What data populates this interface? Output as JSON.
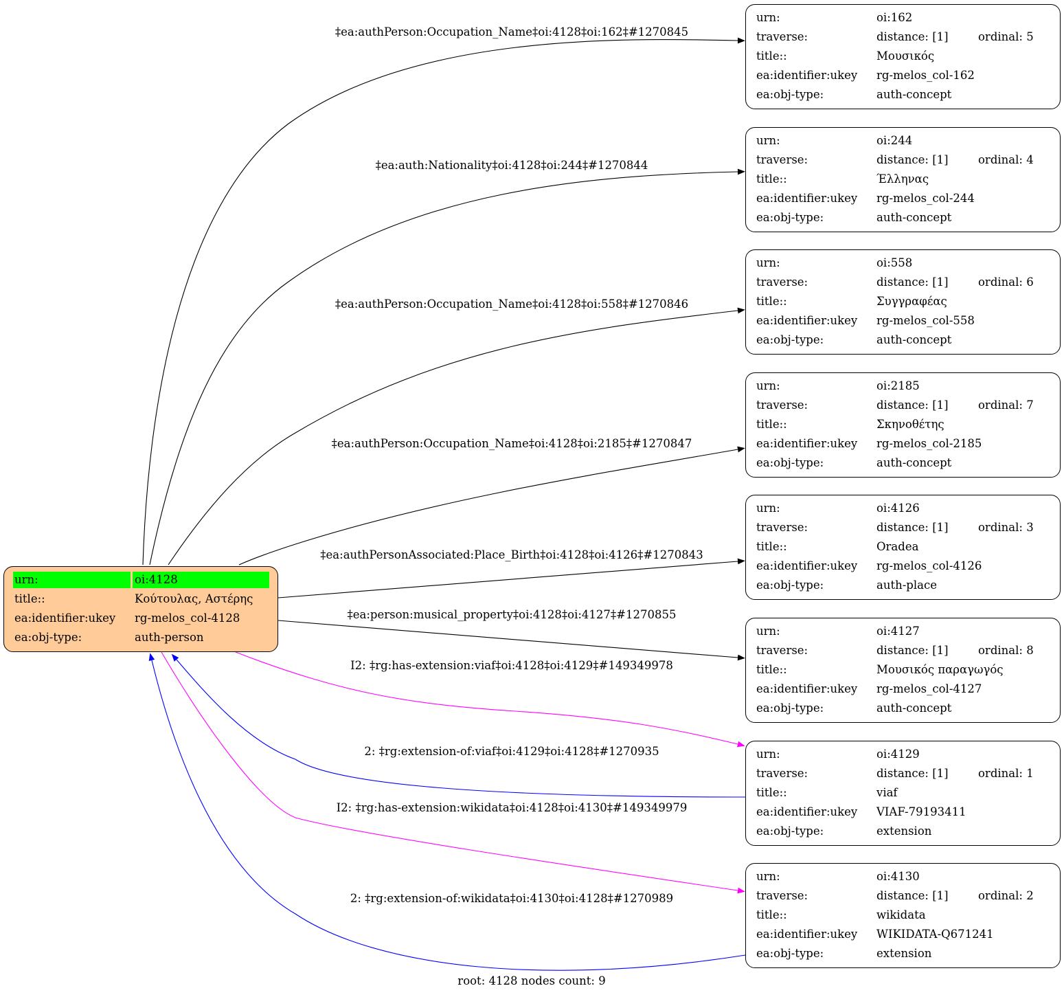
{
  "field_labels": {
    "urn": "urn:",
    "traverse": "traverse:",
    "title": "title::",
    "ukey": "ea:identifier:ukey",
    "objtype": "ea:obj-type:"
  },
  "colors": {
    "root_fill": "#ffcc99",
    "root_highlight": "#00ff00",
    "forward": "#000000",
    "extension": "#ff00ff",
    "extension_of": "#0000ff"
  },
  "root": {
    "urn": "oi:4128",
    "title": "Κούτουλας, Αστέρης",
    "ukey": "rg-melos_col-4128",
    "objtype": "auth-person"
  },
  "nodes": [
    {
      "urn": "oi:162",
      "distance": "distance: [1]",
      "ordinal": "ordinal: 5",
      "title": "Μουσικός",
      "ukey": "rg-melos_col-162",
      "objtype": "auth-concept"
    },
    {
      "urn": "oi:244",
      "distance": "distance: [1]",
      "ordinal": "ordinal: 4",
      "title": "Έλληνας",
      "ukey": "rg-melos_col-244",
      "objtype": "auth-concept"
    },
    {
      "urn": "oi:558",
      "distance": "distance: [1]",
      "ordinal": "ordinal: 6",
      "title": "Συγγραφέας",
      "ukey": "rg-melos_col-558",
      "objtype": "auth-concept"
    },
    {
      "urn": "oi:2185",
      "distance": "distance: [1]",
      "ordinal": "ordinal: 7",
      "title": "Σκηνοθέτης",
      "ukey": "rg-melos_col-2185",
      "objtype": "auth-concept"
    },
    {
      "urn": "oi:4126",
      "distance": "distance: [1]",
      "ordinal": "ordinal: 3",
      "title": "Oradea",
      "ukey": "rg-melos_col-4126",
      "objtype": "auth-place"
    },
    {
      "urn": "oi:4127",
      "distance": "distance: [1]",
      "ordinal": "ordinal: 8",
      "title": "Μουσικός παραγωγός",
      "ukey": "rg-melos_col-4127",
      "objtype": "auth-concept"
    },
    {
      "urn": "oi:4129",
      "distance": "distance: [1]",
      "ordinal": "ordinal: 1",
      "title": "viaf",
      "ukey": "VIAF-79193411",
      "objtype": "extension"
    },
    {
      "urn": "oi:4130",
      "distance": "distance: [1]",
      "ordinal": "ordinal: 2",
      "title": "wikidata",
      "ukey": "WIKIDATA-Q671241",
      "objtype": "extension"
    }
  ],
  "edges": [
    {
      "label": "‡ea:authPerson:Occupation_Name‡oi:4128‡oi:162‡#1270845",
      "color": "#000000"
    },
    {
      "label": "‡ea:auth:Nationality‡oi:4128‡oi:244‡#1270844",
      "color": "#000000"
    },
    {
      "label": "‡ea:authPerson:Occupation_Name‡oi:4128‡oi:558‡#1270846",
      "color": "#000000"
    },
    {
      "label": "‡ea:authPerson:Occupation_Name‡oi:4128‡oi:2185‡#1270847",
      "color": "#000000"
    },
    {
      "label": "‡ea:authPersonAssociated:Place_Birth‡oi:4128‡oi:4126‡#1270843",
      "color": "#000000"
    },
    {
      "label": "‡ea:person:musical_property‡oi:4128‡oi:4127‡#1270855",
      "color": "#000000"
    },
    {
      "label": "I2: ‡rg:has-extension:viaf‡oi:4128‡oi:4129‡#149349978",
      "color": "#ff00ff"
    },
    {
      "label": "2: ‡rg:extension-of:viaf‡oi:4129‡oi:4128‡#1270935",
      "color": "#0000ff"
    },
    {
      "label": "I2: ‡rg:has-extension:wikidata‡oi:4128‡oi:4130‡#149349979",
      "color": "#ff00ff"
    },
    {
      "label": "2: ‡rg:extension-of:wikidata‡oi:4130‡oi:4128‡#1270989",
      "color": "#0000ff"
    }
  ],
  "footer": "root: 4128 nodes count: 9"
}
